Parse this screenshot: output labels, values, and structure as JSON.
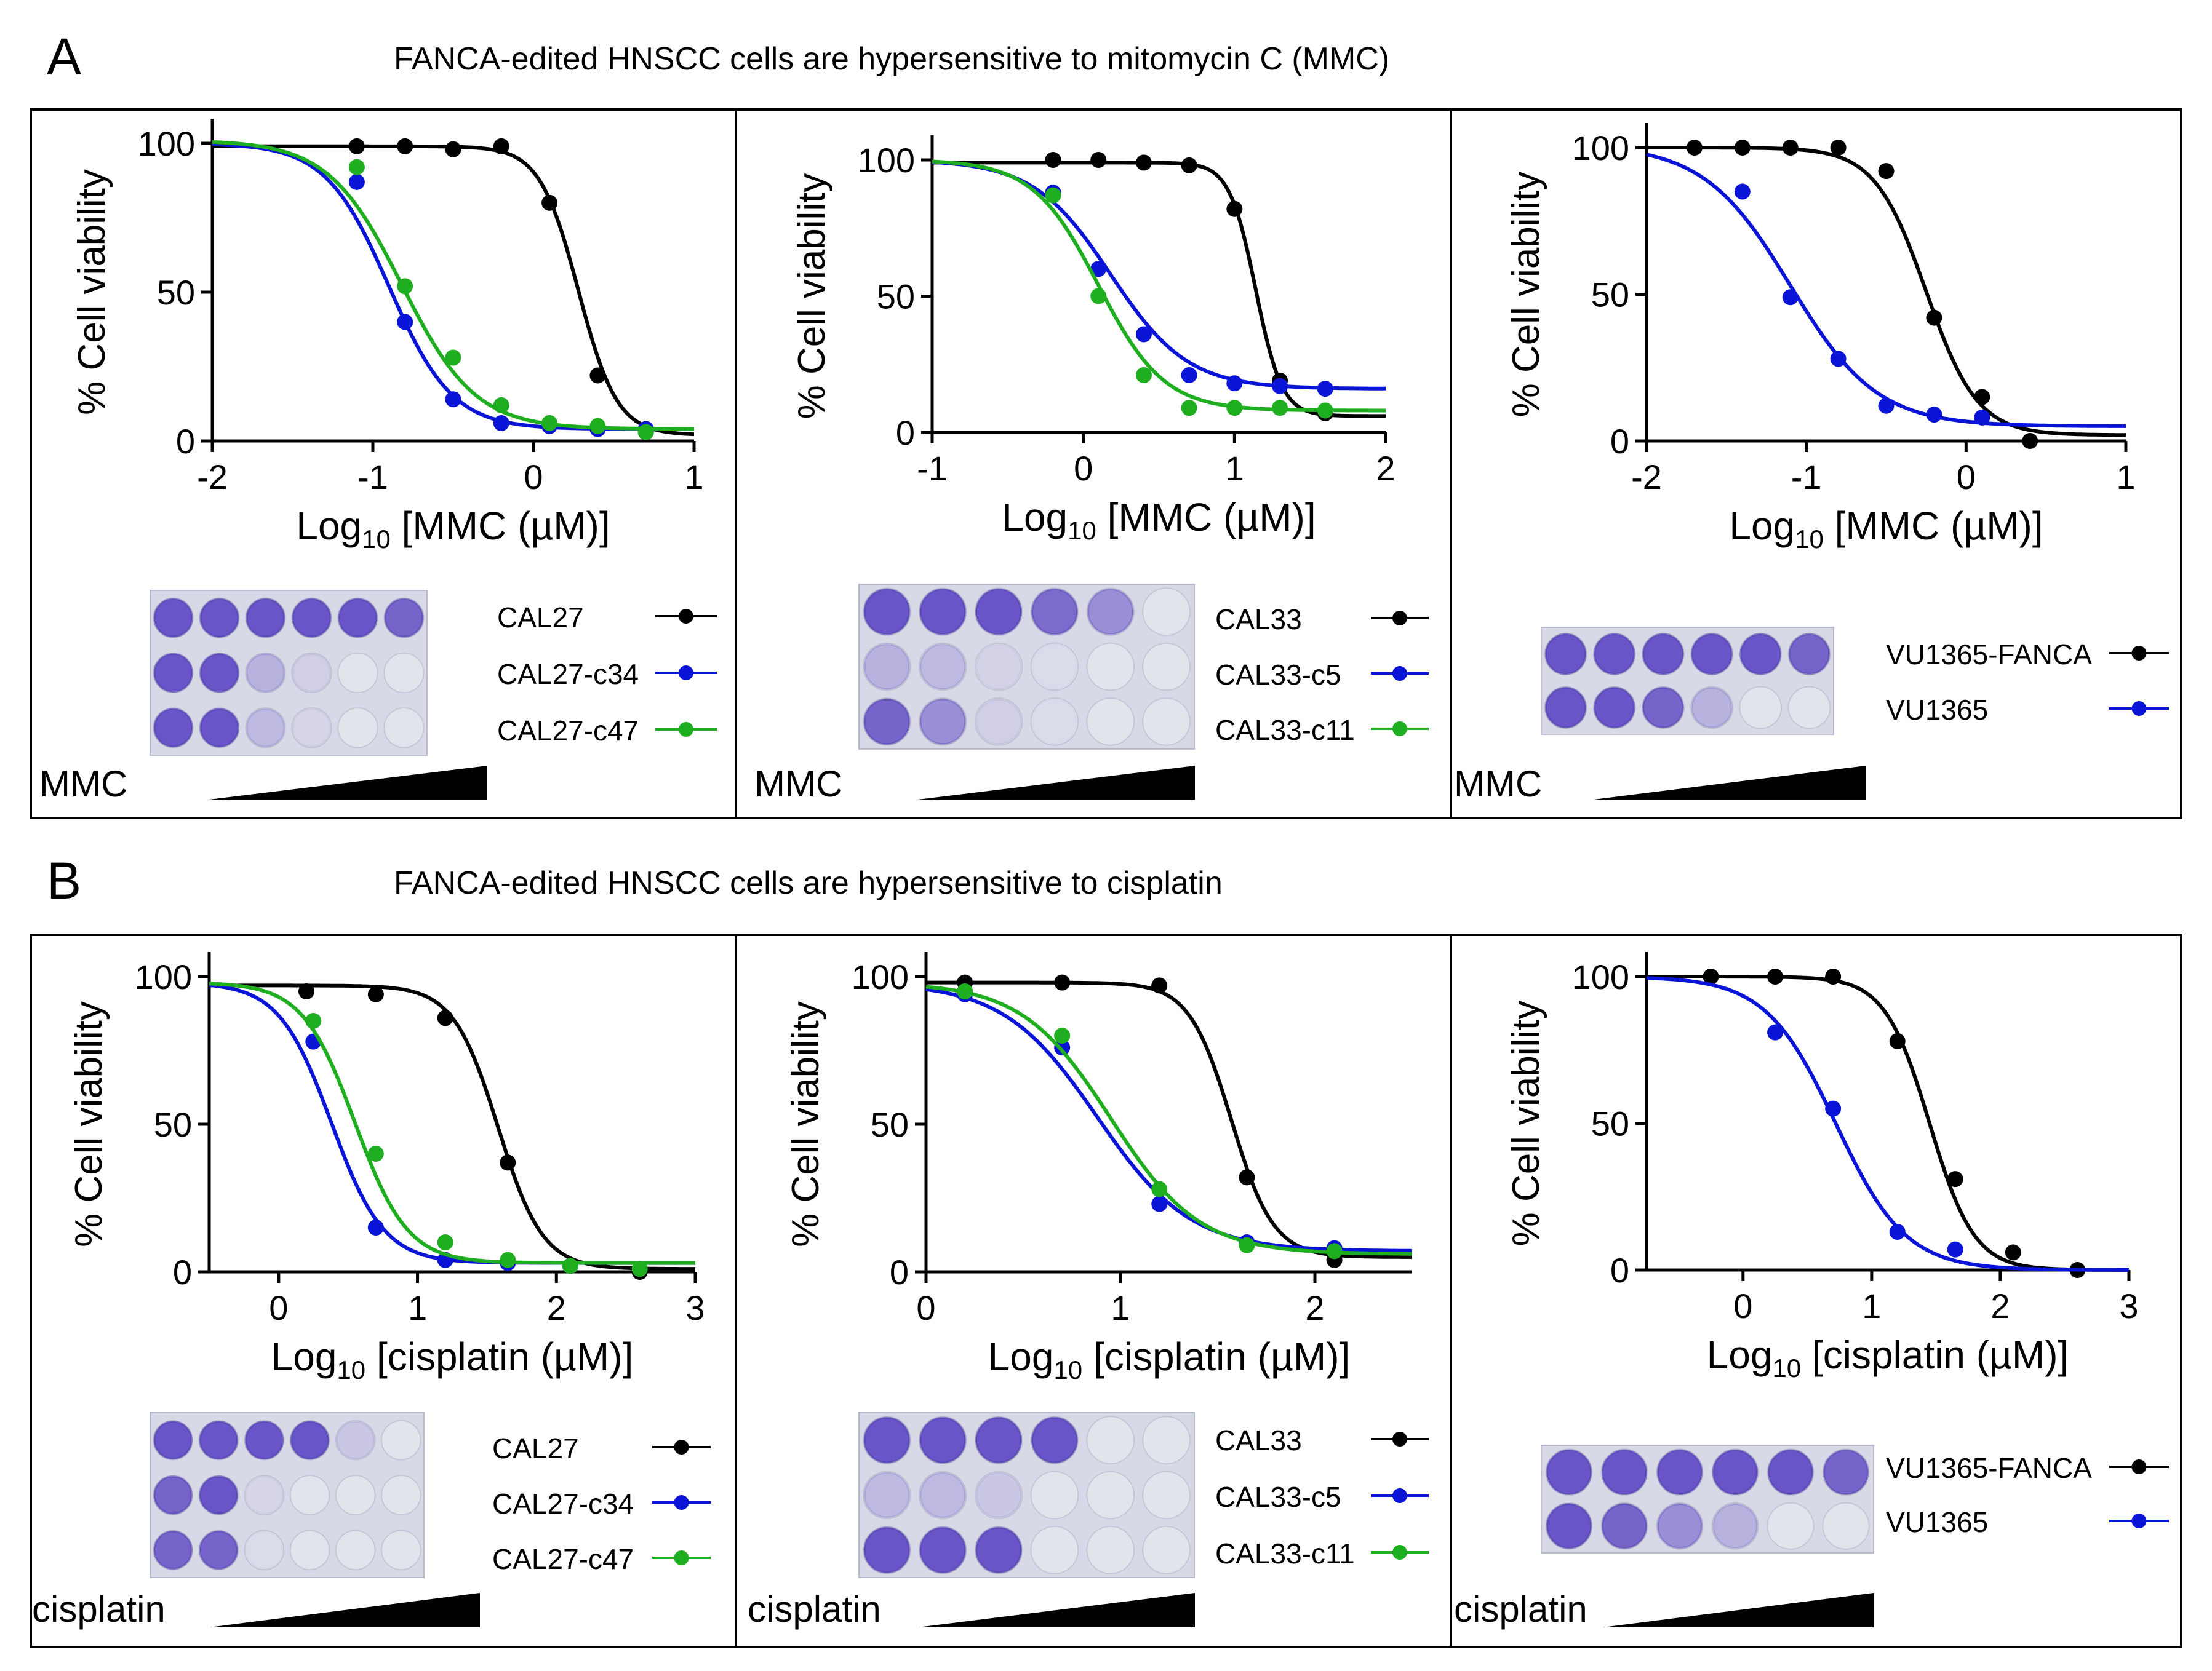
{
  "panels": [
    {
      "letter": "A",
      "heading": "FANCA-edited HNSCC cells are hypersensitive to mitomycin C (MMC)"
    },
    {
      "letter": "B",
      "heading": "FANCA-edited HNSCC cells are hypersensitive to cisplatin"
    }
  ],
  "colors": {
    "parental": "#000000",
    "clone1": "#0a14d6",
    "clone2": "#1fae1f",
    "well_stain": "#6a55c8",
    "well_empty": "#e2e4ec"
  },
  "chart_data": [
    {
      "type": "line",
      "panel": "A",
      "drug": "MMC",
      "y_axis_label": "% Cell viability",
      "x_axis_label": {
        "base": "Log",
        "subscript": "10",
        "rest": " [MMC (µM)]"
      },
      "xlim": [
        -2,
        1
      ],
      "ylim": [
        0,
        100
      ],
      "xticks": [
        "-2",
        "-1",
        "0",
        "1"
      ],
      "yticks": [
        "0",
        "50",
        "100"
      ],
      "series": [
        {
          "name": "CAL27",
          "color": "#000000",
          "x": [
            -1.1,
            -0.8,
            -0.5,
            -0.2,
            0.1,
            0.4,
            0.7
          ],
          "y": [
            99,
            99,
            98,
            99,
            80,
            22,
            3
          ],
          "fit": {
            "top": 99,
            "bottom": 2,
            "logIC50": 0.28,
            "hill": 3.6
          }
        },
        {
          "name": "CAL27-c34",
          "color": "#0a14d6",
          "x": [
            -1.1,
            -0.8,
            -0.5,
            -0.2,
            0.1,
            0.4,
            0.7
          ],
          "y": [
            87,
            40,
            14,
            6,
            5,
            4,
            4
          ],
          "fit": {
            "top": 100,
            "bottom": 4,
            "logIC50": -0.9,
            "hill": 2.2
          }
        },
        {
          "name": "CAL27-c47",
          "color": "#1fae1f",
          "x": [
            -1.1,
            -0.8,
            -0.5,
            -0.2,
            0.1,
            0.4,
            0.7
          ],
          "y": [
            92,
            52,
            28,
            12,
            6,
            5,
            3
          ],
          "fit": {
            "top": 101,
            "bottom": 4,
            "logIC50": -0.82,
            "hill": 1.9
          }
        }
      ],
      "plate": {
        "rows": [
          [
            1,
            1,
            1,
            1,
            1,
            0.9
          ],
          [
            1,
            1,
            0.35,
            0.15,
            0,
            0
          ],
          [
            1,
            1,
            0.3,
            0.1,
            0,
            0
          ]
        ],
        "labels": [
          "CAL27",
          "CAL27-c34",
          "CAL27-c47"
        ],
        "drug_label": "MMC"
      }
    },
    {
      "type": "line",
      "panel": "A",
      "drug": "MMC",
      "y_axis_label": "% Cell viability",
      "x_axis_label": {
        "base": "Log",
        "subscript": "10",
        "rest": " [MMC (µM)]"
      },
      "xlim": [
        -1,
        2
      ],
      "ylim": [
        0,
        100
      ],
      "xticks": [
        "-1",
        "0",
        "1",
        "2"
      ],
      "yticks": [
        "0",
        "50",
        "100"
      ],
      "series": [
        {
          "name": "CAL33",
          "color": "#000000",
          "x": [
            -0.2,
            0.1,
            0.4,
            0.7,
            1.0,
            1.3,
            1.6
          ],
          "y": [
            100,
            100,
            99,
            98,
            82,
            19,
            7
          ],
          "fit": {
            "top": 99,
            "bottom": 6,
            "logIC50": 1.14,
            "hill": 5
          }
        },
        {
          "name": "CAL33-c5",
          "color": "#0a14d6",
          "x": [
            -0.2,
            0.1,
            0.4,
            0.7,
            1.0,
            1.3,
            1.6
          ],
          "y": [
            88,
            60,
            36,
            21,
            18,
            17,
            16
          ],
          "fit": {
            "top": 100,
            "bottom": 16,
            "logIC50": 0.18,
            "hill": 1.7
          }
        },
        {
          "name": "CAL33-c11",
          "color": "#1fae1f",
          "x": [
            -0.2,
            0.1,
            0.4,
            0.7,
            1.0,
            1.3,
            1.6
          ],
          "y": [
            87,
            50,
            21,
            9,
            9,
            9,
            8
          ],
          "fit": {
            "top": 100,
            "bottom": 8,
            "logIC50": 0.1,
            "hill": 2
          }
        }
      ],
      "plate": {
        "rows": [
          [
            1,
            1,
            1,
            0.85,
            0.6,
            0
          ],
          [
            0.35,
            0.3,
            0.12,
            0.05,
            0,
            0
          ],
          [
            0.9,
            0.6,
            0.15,
            0.05,
            0,
            0
          ]
        ],
        "labels": [
          "CAL33",
          "CAL33-c5",
          "CAL33-c11"
        ],
        "drug_label": "MMC"
      }
    },
    {
      "type": "line",
      "panel": "A",
      "drug": "MMC",
      "y_axis_label": "% Cell viability",
      "x_axis_label": {
        "base": "Log",
        "subscript": "10",
        "rest": " [MMC (µM)]"
      },
      "xlim": [
        -2,
        1
      ],
      "ylim": [
        0,
        100
      ],
      "xticks": [
        "-2",
        "-1",
        "0",
        "1"
      ],
      "yticks": [
        "0",
        "50",
        "100"
      ],
      "series": [
        {
          "name": "VU1365-FANCA",
          "color": "#000000",
          "x": [
            -1.7,
            -1.4,
            -1.1,
            -0.8,
            -0.5,
            -0.2,
            0.1,
            0.4
          ],
          "y": [
            100,
            100,
            100,
            100,
            92,
            42,
            15,
            0
          ],
          "fit": {
            "top": 100,
            "bottom": 2,
            "logIC50": -0.25,
            "hill": 2.7
          }
        },
        {
          "name": "VU1365",
          "color": "#0a14d6",
          "x": [
            -1.4,
            -1.1,
            -0.8,
            -0.5,
            -0.2,
            0.1
          ],
          "y": [
            85,
            49,
            28,
            12,
            9,
            8
          ],
          "fit": {
            "top": 101,
            "bottom": 5,
            "logIC50": -1.1,
            "hill": 1.6
          }
        }
      ],
      "plate": {
        "rows": [
          [
            1,
            1,
            1,
            1,
            1,
            0.9
          ],
          [
            1,
            1,
            0.9,
            0.35,
            0,
            0
          ]
        ],
        "labels": [
          "VU1365-FANCA",
          "VU1365"
        ],
        "drug_label": "MMC"
      }
    },
    {
      "type": "line",
      "panel": "B",
      "drug": "cisplatin",
      "y_axis_label": "% Cell viability",
      "x_axis_label": {
        "base": "Log",
        "subscript": "10",
        "rest": " [cisplatin (µM)]"
      },
      "xlim": [
        -0.5,
        3
      ],
      "ylim": [
        0,
        100
      ],
      "xticks": [
        "0",
        "1",
        "2",
        "3"
      ],
      "yticks": [
        "0",
        "50",
        "100"
      ],
      "series": [
        {
          "name": "CAL27",
          "color": "#000000",
          "x": [
            0.2,
            0.7,
            1.2,
            1.65,
            2.1,
            2.6
          ],
          "y": [
            95,
            94,
            86,
            37,
            2,
            0
          ],
          "fit": {
            "top": 97,
            "bottom": 1,
            "logIC50": 1.58,
            "hill": 2.7
          }
        },
        {
          "name": "CAL27-c34",
          "color": "#0a14d6",
          "x": [
            0.25,
            0.7,
            1.2,
            1.65,
            2.1,
            2.6
          ],
          "y": [
            78,
            15,
            4,
            3,
            2,
            1
          ],
          "fit": {
            "top": 98,
            "bottom": 3,
            "logIC50": 0.38,
            "hill": 2.3
          }
        },
        {
          "name": "CAL27-c47",
          "color": "#1fae1f",
          "x": [
            0.25,
            0.7,
            1.2,
            1.65,
            2.1,
            2.6
          ],
          "y": [
            85,
            40,
            10,
            4,
            2,
            1
          ],
          "fit": {
            "top": 98,
            "bottom": 3,
            "logIC50": 0.55,
            "hill": 2.3
          }
        }
      ],
      "plate": {
        "rows": [
          [
            1,
            1,
            1,
            1,
            0.2,
            0
          ],
          [
            0.9,
            1,
            0.1,
            0,
            0,
            0
          ],
          [
            0.9,
            0.9,
            0.05,
            0,
            0,
            0
          ]
        ],
        "labels": [
          "CAL27",
          "CAL27-c34",
          "CAL27-c47"
        ],
        "drug_label": "cisplatin"
      }
    },
    {
      "type": "line",
      "panel": "B",
      "drug": "cisplatin",
      "y_axis_label": "% Cell viability",
      "x_axis_label": {
        "base": "Log",
        "subscript": "10",
        "rest": " [cisplatin (µM)]"
      },
      "xlim": [
        0,
        2.5
      ],
      "ylim": [
        0,
        100
      ],
      "xticks": [
        "0",
        "1",
        "2"
      ],
      "yticks": [
        "0",
        "50",
        "100"
      ],
      "series": [
        {
          "name": "CAL33",
          "color": "#000000",
          "x": [
            0.2,
            0.7,
            1.2,
            1.65,
            2.1
          ],
          "y": [
            98,
            98,
            97,
            32,
            4
          ],
          "fit": {
            "top": 98,
            "bottom": 5,
            "logIC50": 1.57,
            "hill": 4
          }
        },
        {
          "name": "CAL33-c5",
          "color": "#0a14d6",
          "x": [
            0.2,
            0.7,
            1.2,
            1.65,
            2.1
          ],
          "y": [
            94,
            76,
            23,
            10,
            8
          ],
          "fit": {
            "top": 98,
            "bottom": 7,
            "logIC50": 0.88,
            "hill": 1.8
          }
        },
        {
          "name": "CAL33-c11",
          "color": "#1fae1f",
          "x": [
            0.2,
            0.7,
            1.2,
            1.65,
            2.1
          ],
          "y": [
            95,
            80,
            28,
            9,
            7
          ],
          "fit": {
            "top": 98,
            "bottom": 6,
            "logIC50": 0.95,
            "hill": 1.9
          }
        }
      ],
      "plate": {
        "rows": [
          [
            1,
            1,
            1,
            1,
            0,
            0
          ],
          [
            0.3,
            0.3,
            0.2,
            0,
            0,
            0
          ],
          [
            1,
            1,
            1,
            0,
            0,
            0
          ]
        ],
        "labels": [
          "CAL33",
          "CAL33-c5",
          "CAL33-c11"
        ],
        "drug_label": "cisplatin"
      }
    },
    {
      "type": "line",
      "panel": "B",
      "drug": "cisplatin",
      "y_axis_label": "% Cell viability",
      "x_axis_label": {
        "base": "Log",
        "subscript": "10",
        "rest": " [cisplatin (µM)]"
      },
      "xlim": [
        -0.75,
        3
      ],
      "ylim": [
        0,
        100
      ],
      "xticks": [
        "0",
        "1",
        "2",
        "3"
      ],
      "yticks": [
        "0",
        "50",
        "100"
      ],
      "series": [
        {
          "name": "VU1365-FANCA",
          "color": "#000000",
          "x": [
            -0.25,
            0.25,
            0.7,
            1.2,
            1.65,
            2.1,
            2.6
          ],
          "y": [
            100,
            100,
            100,
            78,
            31,
            6,
            0
          ],
          "fit": {
            "top": 100,
            "bottom": 0,
            "logIC50": 1.45,
            "hill": 2.5
          }
        },
        {
          "name": "VU1365",
          "color": "#0a14d6",
          "x": [
            0.25,
            0.7,
            1.2,
            1.65
          ],
          "y": [
            81,
            55,
            13,
            7
          ],
          "fit": {
            "top": 100,
            "bottom": 0,
            "logIC50": 0.72,
            "hill": 1.6
          }
        }
      ],
      "plate": {
        "rows": [
          [
            1,
            1,
            1,
            1,
            1,
            0.9
          ],
          [
            1,
            0.9,
            0.6,
            0.35,
            0,
            0
          ]
        ],
        "labels": [
          "VU1365-FANCA",
          "VU1365"
        ],
        "drug_label": "cisplatin"
      }
    }
  ]
}
